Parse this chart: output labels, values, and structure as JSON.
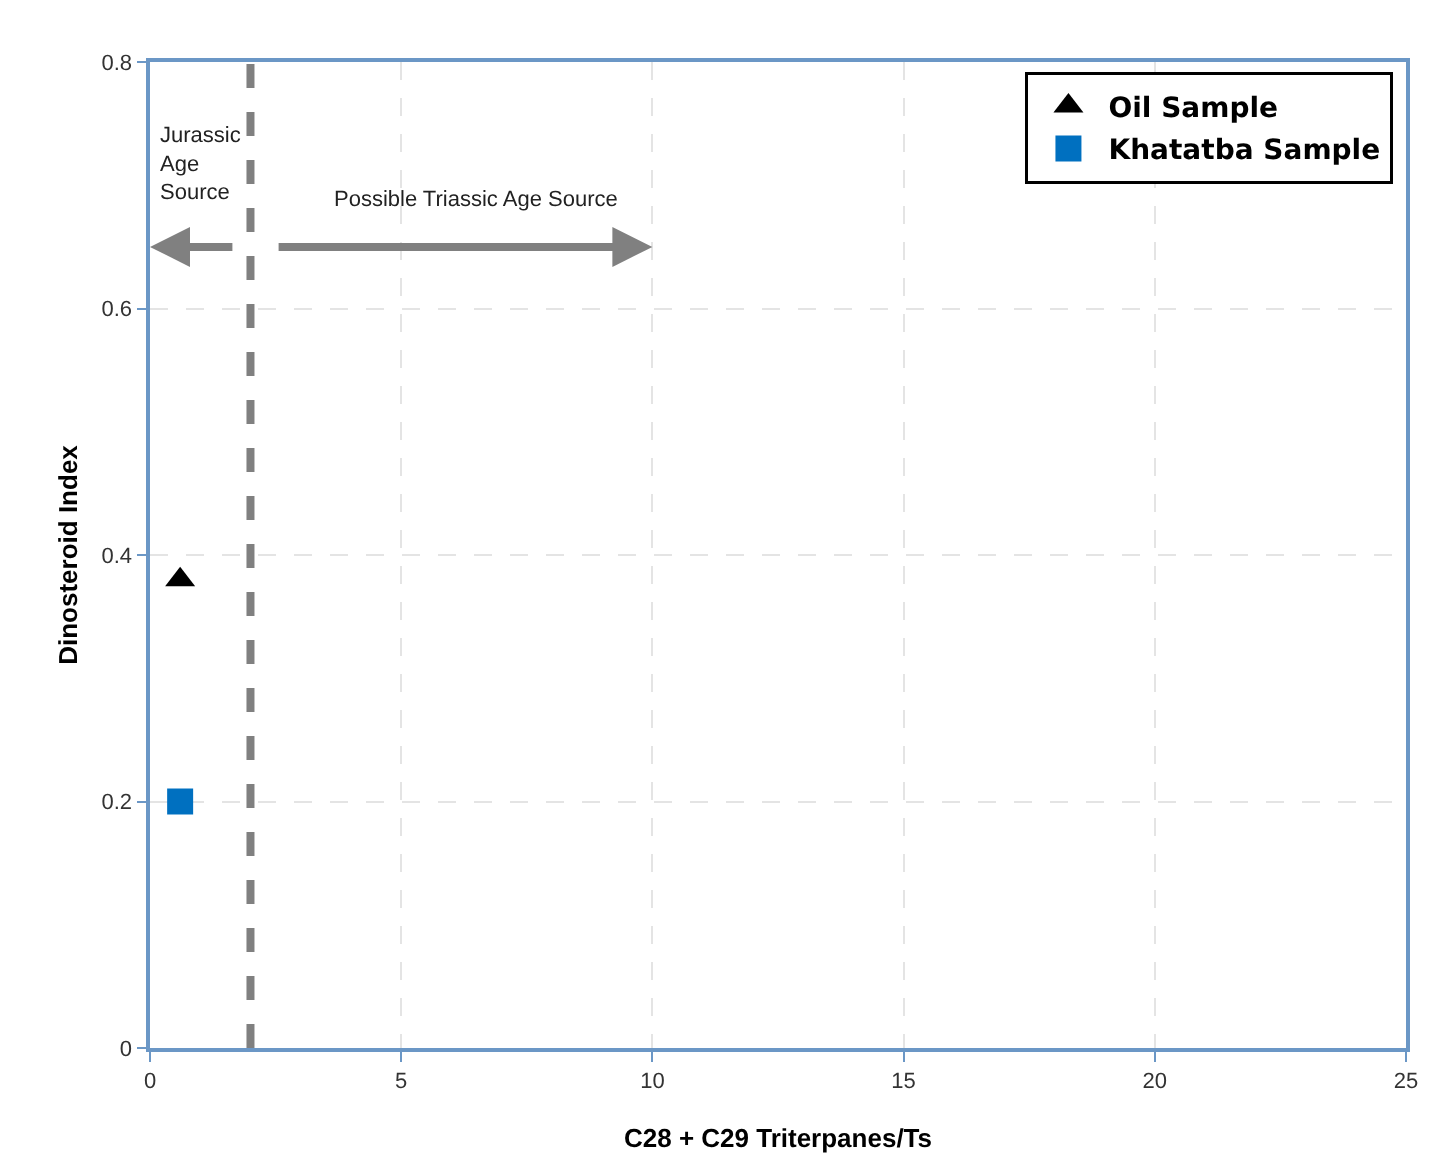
{
  "chart_data": {
    "type": "scatter",
    "xlabel": "C28 + C29 Triterpanes/Ts",
    "ylabel": "Dinosteroid Index",
    "series": [
      {
        "name": "Oil Sample",
        "color": "#000000",
        "marker": "triangle",
        "x": [
          0.6
        ],
        "values": [
          0.38
        ]
      },
      {
        "name": "Khatatba Sample",
        "color": "#0070c0",
        "marker": "square",
        "x": [
          0.6
        ],
        "values": [
          0.2
        ]
      }
    ],
    "xlim": [
      0,
      25
    ],
    "xticks": [
      0,
      5,
      10,
      15,
      20,
      25
    ],
    "ylim": [
      0,
      0.8
    ],
    "yticks": [
      0,
      0.2,
      0.4,
      0.6,
      0.8
    ],
    "grid": true,
    "legend": "top right",
    "ref_lines": [
      {
        "axis": "x",
        "value": 2,
        "color": "#808080",
        "line_style": "dashed"
      }
    ],
    "annotations": [
      "Jurassic\nAge\nSource",
      "Possible Triassic Age Source"
    ]
  }
}
